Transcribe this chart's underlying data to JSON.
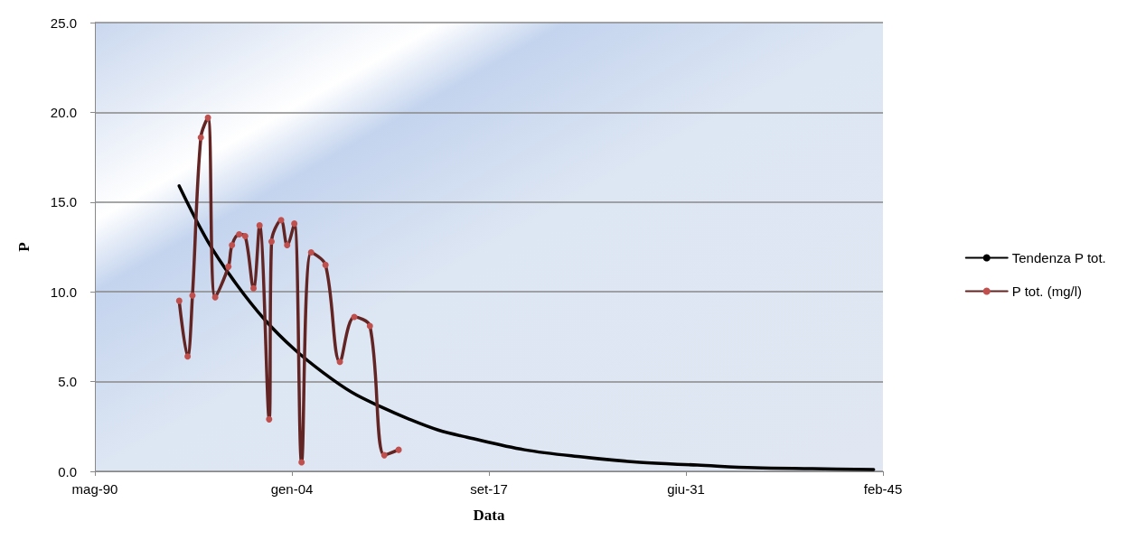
{
  "chart_data": {
    "type": "line",
    "xlabel": "Data",
    "ylabel": "P",
    "xlim": [
      "1990-05-07",
      "2045-02-07"
    ],
    "xticks": [
      {
        "value": "1990-05-07",
        "label": "mag-90"
      },
      {
        "value": "2004-01-14",
        "label": "gen-04"
      },
      {
        "value": "2017-09-22",
        "label": "set-17"
      },
      {
        "value": "2031-06-01",
        "label": "giu-31"
      },
      {
        "value": "2045-02-07",
        "label": "feb-45"
      }
    ],
    "ylim": [
      0,
      25
    ],
    "yticks": [
      {
        "value": 0,
        "label": "0.0"
      },
      {
        "value": 5,
        "label": "5.0"
      },
      {
        "value": 10,
        "label": "10.0"
      },
      {
        "value": 15,
        "label": "15.0"
      },
      {
        "value": 20,
        "label": "20.0"
      },
      {
        "value": 25,
        "label": "25.0"
      }
    ],
    "grid": "y",
    "legend": "right",
    "series": [
      {
        "name": "Tendenza P tot.",
        "color": "#000000",
        "marker": "none",
        "x": [
          "1996-03",
          "1998-03",
          "2000-03",
          "2002-03",
          "2004-03",
          "2006-03",
          "2008-03",
          "2010-03",
          "2012-03",
          "2014-03",
          "2016-03",
          "2020-03",
          "2024-03",
          "2028-03",
          "2032-03",
          "2036-03",
          "2040-03",
          "2044-06"
        ],
        "values": [
          15.9,
          12.8,
          10.4,
          8.4,
          6.8,
          5.5,
          4.4,
          3.6,
          2.9,
          2.3,
          1.9,
          1.2,
          0.8,
          0.5,
          0.35,
          0.2,
          0.15,
          0.1
        ]
      },
      {
        "name": "P tot. (mg/l)",
        "color": "#632523",
        "marker": "circle",
        "x": [
          "1996-03",
          "1996-10",
          "1997-02",
          "1997-09",
          "1998-03",
          "1998-09",
          "1999-08",
          "1999-11",
          "2000-05",
          "2000-10",
          "2001-05",
          "2001-10",
          "2002-06",
          "2002-08",
          "2003-04",
          "2003-09",
          "2004-03",
          "2004-09",
          "2005-05",
          "2006-05",
          "2007-05",
          "2008-05",
          "2009-06",
          "2010-06",
          "2011-06"
        ],
        "values": [
          9.5,
          6.4,
          9.8,
          18.6,
          19.7,
          9.7,
          11.4,
          12.6,
          13.2,
          13.1,
          10.2,
          13.7,
          2.9,
          12.8,
          14.0,
          12.6,
          13.8,
          0.5,
          12.2,
          11.5,
          6.1,
          8.6,
          8.1,
          0.9,
          1.2
        ]
      }
    ]
  }
}
